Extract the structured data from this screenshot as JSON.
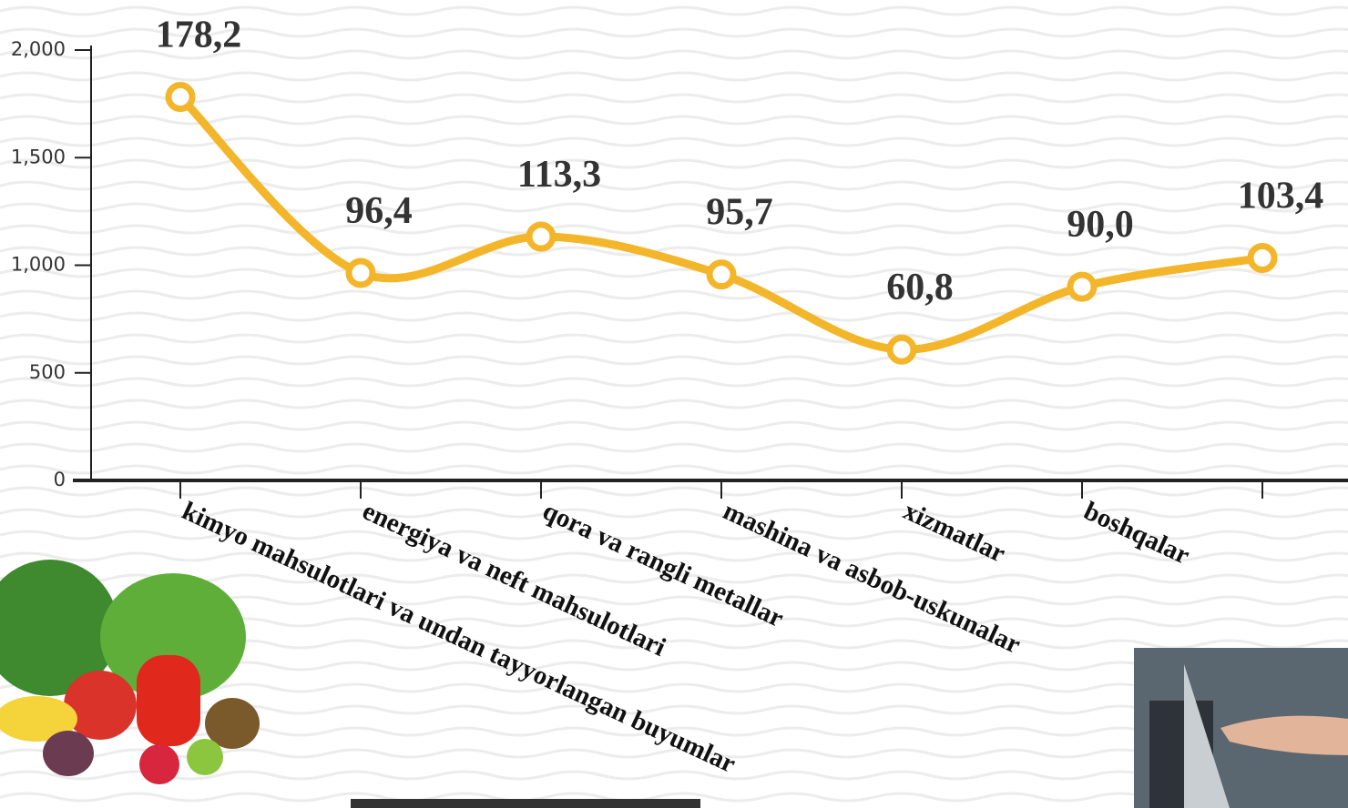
{
  "chart_data": {
    "type": "line",
    "categories": [
      "kimyo mahsulotlari va undan tayyorlangan buyumlar",
      "energiya va neft mahsulotlari",
      "qora va rangli metallar",
      "mashina va asbob-uskunalar",
      "xizmatlar",
      "boshqalar",
      null
    ],
    "series": [
      {
        "color": "#f3b62b",
        "values": [
          1782,
          964,
          1133,
          957,
          608,
          900,
          1034
        ],
        "value_labels": [
          "178,2",
          "96,4",
          "113,3",
          "95,7",
          "60,8",
          "90,0",
          "103,4"
        ]
      }
    ],
    "ylim": [
      0,
      2000
    ],
    "yticks": [
      0,
      500,
      {
        "value": 1000,
        "label": "1,000"
      },
      {
        "value": 1500,
        "label": "1,500"
      },
      {
        "value": 2000,
        "label": "2,000"
      }
    ]
  }
}
